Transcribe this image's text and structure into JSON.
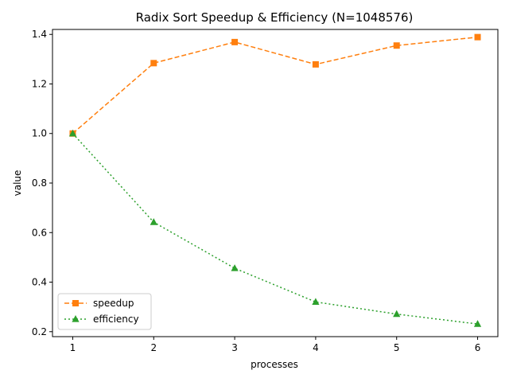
{
  "chart_data": {
    "type": "line",
    "title": "Radix Sort Speedup & Efficiency (N=1048576)",
    "xlabel": "processes",
    "ylabel": "value",
    "x": [
      1,
      2,
      3,
      4,
      5,
      6
    ],
    "xticks": [
      "1",
      "2",
      "3",
      "4",
      "5",
      "6"
    ],
    "xlim": [
      0.75,
      6.25
    ],
    "ylim": [
      0.18,
      1.42
    ],
    "yticks": [
      "0.2",
      "0.4",
      "0.6",
      "0.8",
      "1.0",
      "1.2",
      "1.4"
    ],
    "grid": false,
    "legend_position": "lower-left",
    "series": [
      {
        "name": "speedup",
        "values": [
          1.0,
          1.284,
          1.369,
          1.279,
          1.355,
          1.389
        ],
        "color": "#ff7f0e",
        "linestyle": "dashed",
        "marker": "square"
      },
      {
        "name": "efficiency",
        "values": [
          1.0,
          0.642,
          0.456,
          0.32,
          0.271,
          0.231
        ],
        "color": "#2ca02c",
        "linestyle": "dotted",
        "marker": "triangle-up"
      }
    ]
  }
}
